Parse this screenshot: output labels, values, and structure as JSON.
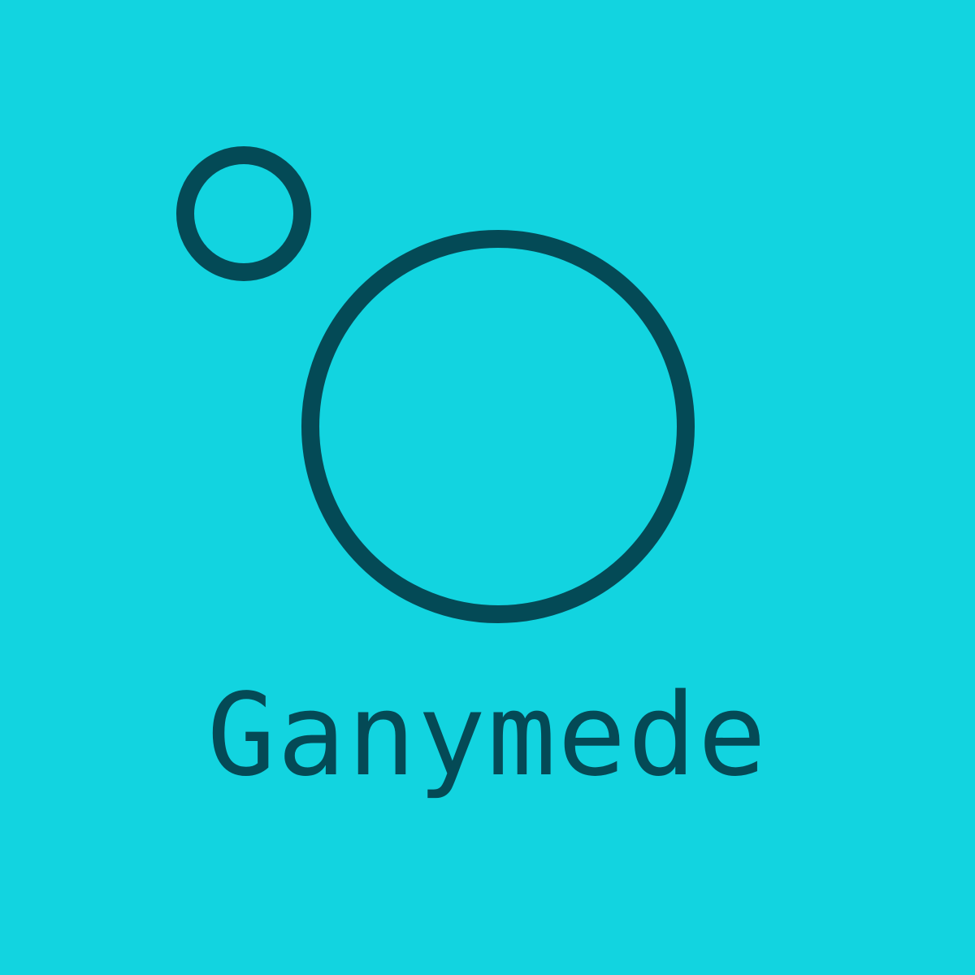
{
  "brand": {
    "name": "Ganymede"
  },
  "colors": {
    "background": "#12d4e0",
    "ink": "#044a56"
  },
  "icons": [
    "moon-circle-icon",
    "planet-circle-icon"
  ]
}
